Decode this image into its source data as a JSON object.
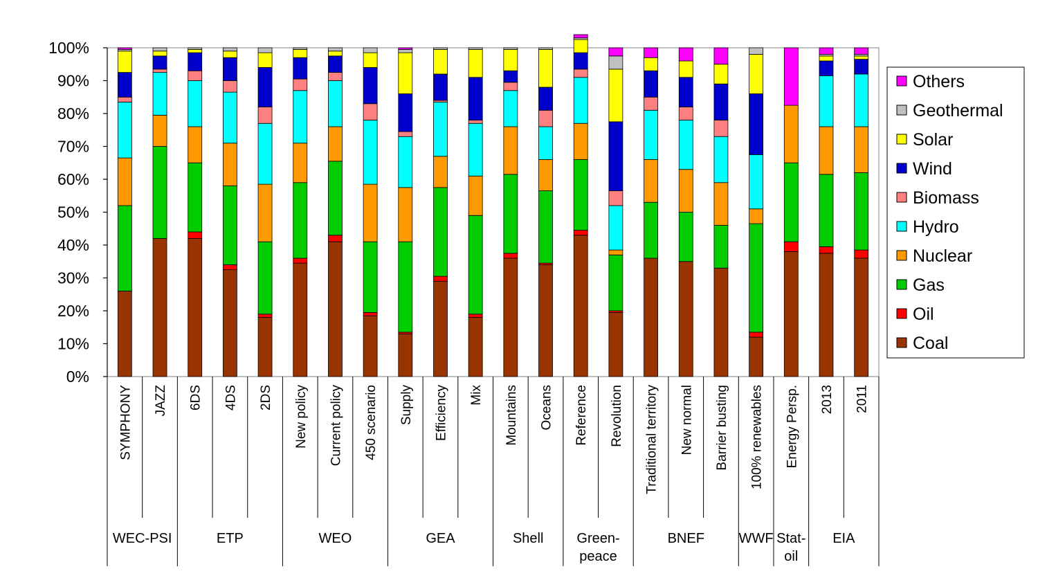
{
  "chart_data": {
    "type": "bar",
    "stacked": true,
    "ylim": [
      0,
      100
    ],
    "y_ticks": [
      "0%",
      "10%",
      "20%",
      "30%",
      "40%",
      "50%",
      "60%",
      "70%",
      "80%",
      "90%",
      "100%"
    ],
    "grid": false,
    "legend_position": "right",
    "categories": [
      "SYMPHONY",
      "JAZZ",
      "6DS",
      "4DS",
      "2DS",
      "New policy",
      "Current policy",
      "450 scenario",
      "Supply",
      "Efficiency",
      "Mix",
      "Mountains",
      "Oceans",
      "Reference",
      "Revolution",
      "Traditional territory",
      "New normal",
      "Barrier busting",
      "100% renewables",
      "Energy Persp.",
      "2013",
      "2011"
    ],
    "groups": [
      {
        "label": "WEC-PSI",
        "span": 2
      },
      {
        "label": "ETP",
        "span": 3
      },
      {
        "label": "WEO",
        "span": 3
      },
      {
        "label": "GEA",
        "span": 3
      },
      {
        "label": "Shell",
        "span": 2
      },
      {
        "label": "Green-\npeace",
        "span": 2
      },
      {
        "label": "BNEF",
        "span": 3
      },
      {
        "label": "WWF",
        "span": 1
      },
      {
        "label": "Stat-\noil",
        "span": 1
      },
      {
        "label": "EIA",
        "span": 2
      }
    ],
    "series": [
      {
        "name": "Coal",
        "color": "#993300",
        "values": [
          26,
          42,
          42,
          32.5,
          18,
          34.5,
          41,
          18.5,
          13,
          29,
          18,
          36,
          34,
          43,
          19.5,
          36,
          35,
          33,
          12,
          38,
          37.5,
          36
        ]
      },
      {
        "name": "Oil",
        "color": "#ff0000",
        "values": [
          0,
          0,
          2,
          1.5,
          1,
          1.5,
          2,
          1,
          0.5,
          1.5,
          1,
          1.5,
          0.5,
          1.5,
          0.5,
          0,
          0,
          0,
          1.5,
          3,
          2,
          2.5
        ]
      },
      {
        "name": "Gas",
        "color": "#00cc00",
        "values": [
          26,
          28,
          21,
          24,
          22,
          23,
          22.5,
          21.5,
          27.5,
          27,
          30,
          24,
          22,
          21.5,
          17,
          17,
          15,
          13,
          33,
          24,
          22,
          23.5
        ]
      },
      {
        "name": "Nuclear",
        "color": "#ff9900",
        "values": [
          14.5,
          9.5,
          11,
          13,
          17.5,
          12,
          10.5,
          17.5,
          16.5,
          9.5,
          12,
          14.5,
          9.5,
          11,
          1.5,
          13,
          13,
          13,
          4.5,
          17.5,
          14.5,
          14
        ]
      },
      {
        "name": "Hydro",
        "color": "#00ffff",
        "values": [
          17,
          13,
          14,
          15.5,
          18.5,
          16,
          14,
          19.5,
          15.5,
          16.5,
          16,
          11,
          10,
          14,
          13.5,
          15,
          15,
          14,
          16.5,
          0,
          15.5,
          16
        ]
      },
      {
        "name": "Biomass",
        "color": "#ff8080",
        "values": [
          1.5,
          1,
          3,
          3.5,
          5,
          3.5,
          2.5,
          5,
          1.5,
          0.5,
          1,
          2.5,
          5,
          2.5,
          4.5,
          4,
          4,
          5,
          0,
          0,
          0,
          0
        ]
      },
      {
        "name": "Wind",
        "color": "#0000cc",
        "values": [
          7.5,
          4,
          5.5,
          7,
          12,
          6.5,
          5,
          11,
          11.5,
          8,
          13,
          3.5,
          7,
          5,
          21,
          8,
          9,
          11,
          18.5,
          0,
          4.5,
          4.5
        ]
      },
      {
        "name": "Solar",
        "color": "#ffff00",
        "values": [
          6.5,
          1.5,
          1,
          2,
          4.5,
          2.5,
          1.5,
          4.5,
          12.5,
          7.5,
          8.5,
          6.5,
          11.5,
          4,
          16,
          4,
          5,
          6,
          12,
          0,
          1.5,
          1
        ]
      },
      {
        "name": "Geothermal",
        "color": "#c0c0c0",
        "values": [
          0.5,
          1,
          0.5,
          1,
          1.5,
          0.5,
          1,
          1.5,
          1,
          0.5,
          0.5,
          0.5,
          0.5,
          0.5,
          4,
          0,
          0,
          0,
          2,
          0,
          0.5,
          0.5
        ]
      },
      {
        "name": "Others",
        "color": "#ff00ff",
        "values": [
          0.5,
          0,
          0,
          0,
          0,
          0,
          0,
          0,
          0.5,
          0,
          0,
          0,
          0,
          1,
          2.5,
          3,
          4,
          5,
          0,
          17.5,
          2,
          2
        ]
      }
    ]
  }
}
